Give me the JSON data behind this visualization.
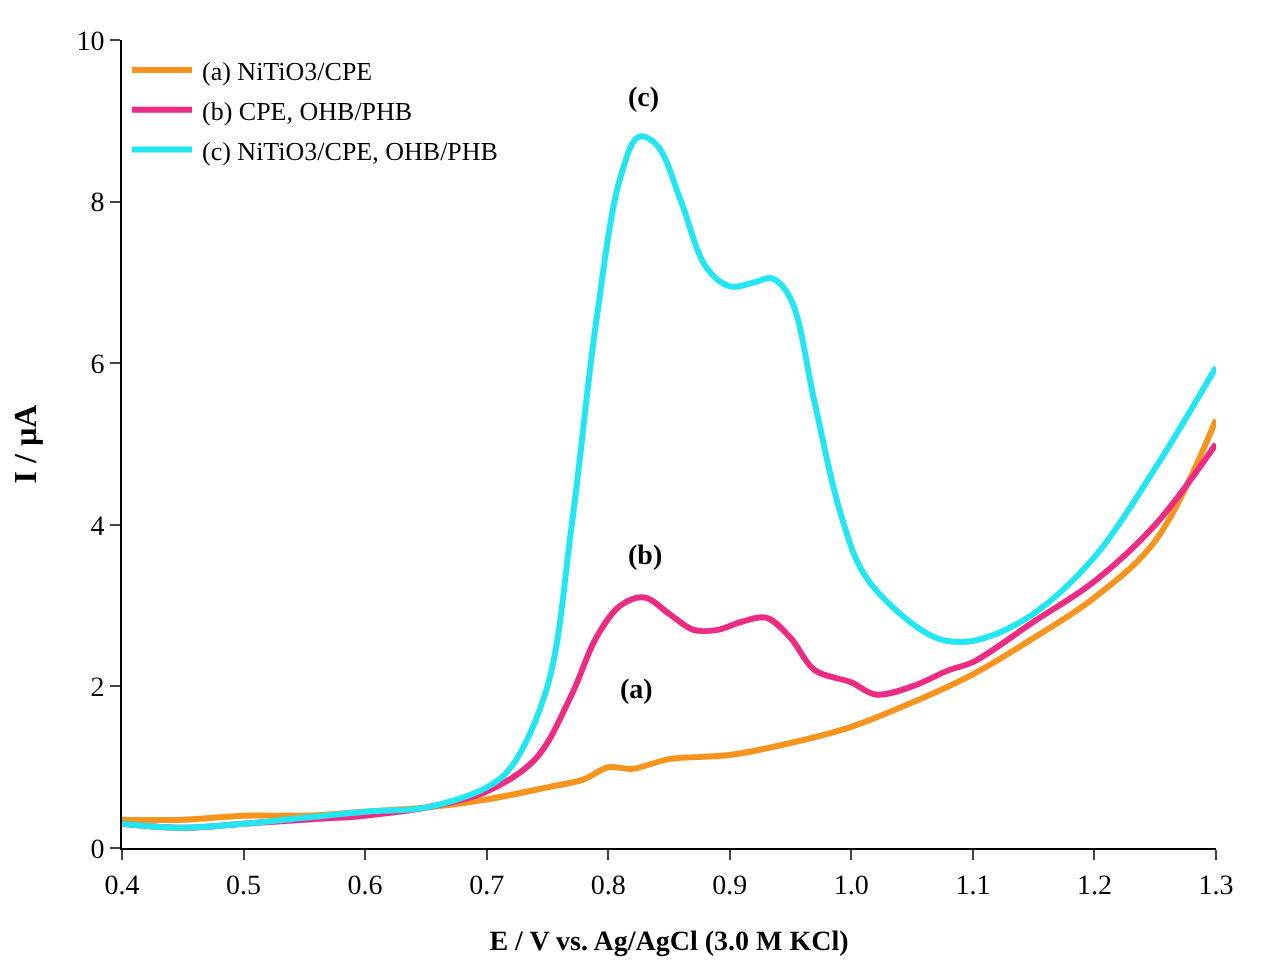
{
  "chart_data": {
    "type": "line",
    "xlabel": "E / V vs. Ag/AgCl (3.0 M KCl)",
    "ylabel": "I / µA",
    "xlim": [
      0.4,
      1.3
    ],
    "xticks": [
      0.4,
      0.5,
      0.6,
      0.7,
      0.8,
      0.9,
      {
        "value": 1.0,
        "label": "1.0"
      },
      1.1,
      1.2,
      1.3
    ],
    "ylim": [
      0,
      10
    ],
    "yticks": [
      0,
      2,
      4,
      6,
      8,
      10
    ],
    "legend": "top left",
    "marker": "none",
    "line_style": "solid",
    "annotations": [
      "(c)",
      "(b)",
      "(a)"
    ],
    "series": [
      {
        "name": "(a) NiTiO3/CPE",
        "color": "#f7941d",
        "x": [
          0.4,
          0.45,
          0.5,
          0.55,
          0.6,
          0.65,
          0.7,
          0.75,
          0.78,
          0.8,
          0.82,
          0.85,
          0.9,
          0.95,
          1.0,
          1.05,
          1.1,
          1.15,
          1.2,
          1.25,
          1.3
        ],
        "values": [
          0.35,
          0.35,
          0.4,
          0.4,
          0.45,
          0.5,
          0.6,
          0.75,
          0.85,
          1.0,
          0.98,
          1.1,
          1.15,
          1.3,
          1.5,
          1.8,
          2.15,
          2.6,
          3.1,
          3.8,
          5.3
        ]
      },
      {
        "name": "(b) CPE, OHB/PHB",
        "color": "#ec2c84",
        "x": [
          0.4,
          0.45,
          0.5,
          0.55,
          0.6,
          0.65,
          0.7,
          0.74,
          0.77,
          0.79,
          0.81,
          0.83,
          0.85,
          0.87,
          0.89,
          0.91,
          0.93,
          0.95,
          0.97,
          1.0,
          1.02,
          1.05,
          1.08,
          1.1,
          1.15,
          1.2,
          1.25,
          1.3
        ],
        "values": [
          0.3,
          0.25,
          0.3,
          0.35,
          0.4,
          0.5,
          0.7,
          1.1,
          1.9,
          2.6,
          3.0,
          3.1,
          2.9,
          2.7,
          2.7,
          2.8,
          2.85,
          2.6,
          2.2,
          2.05,
          1.9,
          2.0,
          2.2,
          2.3,
          2.8,
          3.3,
          4.0,
          5.0
        ]
      },
      {
        "name": "(c) NiTiO3/CPE, OHB/PHB",
        "color": "#22e6f2",
        "x": [
          0.4,
          0.45,
          0.5,
          0.6,
          0.65,
          0.7,
          0.72,
          0.75,
          0.77,
          0.79,
          0.81,
          0.825,
          0.84,
          0.86,
          0.88,
          0.9,
          0.92,
          0.935,
          0.95,
          0.97,
          0.99,
          1.01,
          1.04,
          1.07,
          1.09,
          1.11,
          1.15,
          1.2,
          1.25,
          1.3
        ],
        "values": [
          0.3,
          0.25,
          0.3,
          0.45,
          0.5,
          0.75,
          1.0,
          2.0,
          4.0,
          6.5,
          8.3,
          8.8,
          8.7,
          8.0,
          7.2,
          6.95,
          7.0,
          7.05,
          6.8,
          5.5,
          4.2,
          3.4,
          2.9,
          2.6,
          2.55,
          2.6,
          2.9,
          3.6,
          4.7,
          5.95
        ]
      }
    ]
  }
}
